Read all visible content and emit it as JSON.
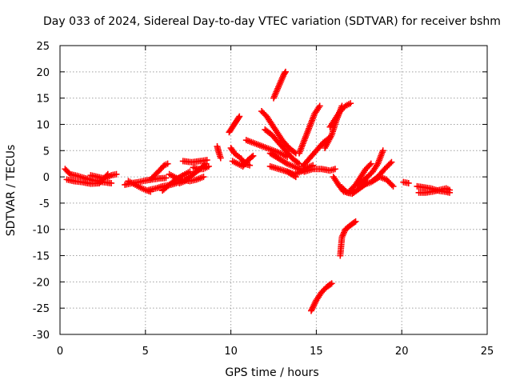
{
  "chart_data": {
    "type": "scatter",
    "title": "Day 033 of 2024, Sidereal Day-to-day VTEC variation (SDTVAR) for receiver bshm",
    "xlabel": "GPS time / hours",
    "ylabel": "SDTVAR / TECUs",
    "xlim": [
      0,
      25
    ],
    "ylim": [
      -30,
      25
    ],
    "x_ticks": [
      0,
      5,
      10,
      15,
      20,
      25
    ],
    "y_ticks": [
      -30,
      -25,
      -20,
      -15,
      -10,
      -5,
      0,
      5,
      10,
      15,
      20,
      25
    ],
    "grid": true,
    "marker": "plus",
    "color": "#ff0000",
    "segments": [
      {
        "name": "s1",
        "x": [
          0.3,
          0.6,
          1.0,
          1.5,
          2.0,
          2.5,
          3.0
        ],
        "y": [
          1.5,
          0.5,
          0.2,
          -0.3,
          -0.7,
          -1.0,
          -1.2
        ]
      },
      {
        "name": "s2",
        "x": [
          0.4,
          0.8,
          1.3,
          1.8,
          2.3,
          2.8
        ],
        "y": [
          -0.5,
          -0.8,
          -1.0,
          -1.3,
          -1.2,
          0.5
        ]
      },
      {
        "name": "s3",
        "x": [
          1.8,
          2.2,
          2.6,
          3.0,
          3.3
        ],
        "y": [
          0.3,
          0.0,
          -0.3,
          0.3,
          0.5
        ]
      },
      {
        "name": "s4",
        "x": [
          3.8,
          4.2,
          4.6,
          5.0,
          5.4,
          5.8,
          6.2
        ],
        "y": [
          -1.5,
          -1.2,
          -1.0,
          -0.7,
          -0.5,
          -0.3,
          -0.2
        ]
      },
      {
        "name": "s5",
        "x": [
          4.0,
          4.4,
          4.8,
          5.1,
          5.3
        ],
        "y": [
          -0.8,
          -1.5,
          -2.2,
          -2.6,
          -2.8
        ]
      },
      {
        "name": "s6",
        "x": [
          5.3,
          5.6,
          5.9,
          6.1,
          6.3
        ],
        "y": [
          -0.5,
          0.5,
          1.5,
          2.2,
          2.5
        ]
      },
      {
        "name": "s7",
        "x": [
          5.2,
          5.6,
          6.0,
          6.5,
          7.0,
          7.4
        ],
        "y": [
          -2.5,
          -2.2,
          -1.8,
          -1.5,
          -1.0,
          -0.5
        ]
      },
      {
        "name": "s8",
        "x": [
          6.0,
          6.4,
          6.8,
          7.2,
          7.6
        ],
        "y": [
          -2.6,
          -1.5,
          -0.5,
          0.3,
          1.0
        ]
      },
      {
        "name": "s9",
        "x": [
          6.4,
          6.8,
          7.2,
          7.6,
          8.0,
          8.4
        ],
        "y": [
          0.5,
          -0.2,
          -0.6,
          -0.8,
          -0.5,
          0.0
        ]
      },
      {
        "name": "s10",
        "x": [
          7.0,
          7.3,
          7.6,
          7.9,
          8.2,
          8.5
        ],
        "y": [
          -1.2,
          -0.8,
          0.0,
          0.8,
          1.5,
          2.5
        ]
      },
      {
        "name": "s11",
        "x": [
          7.2,
          7.7,
          8.2,
          8.6
        ],
        "y": [
          3.0,
          2.8,
          3.0,
          3.2
        ]
      },
      {
        "name": "s12",
        "x": [
          7.8,
          8.1,
          8.4,
          8.7
        ],
        "y": [
          1.8,
          1.5,
          1.5,
          2.0
        ]
      },
      {
        "name": "s13",
        "x": [
          9.2,
          9.3,
          9.4
        ],
        "y": [
          5.8,
          4.6,
          3.6
        ]
      },
      {
        "name": "s14",
        "x": [
          9.9,
          10.1,
          10.3,
          10.5
        ],
        "y": [
          8.5,
          9.5,
          10.5,
          11.5
        ]
      },
      {
        "name": "s15",
        "x": [
          10.0,
          10.2,
          10.4,
          10.6,
          10.8,
          11.1
        ],
        "y": [
          5.5,
          4.5,
          4.0,
          3.5,
          2.5,
          2.2
        ]
      },
      {
        "name": "s16",
        "x": [
          10.1,
          10.4,
          10.7,
          11.0,
          11.3
        ],
        "y": [
          3.0,
          2.5,
          2.0,
          3.2,
          4.0
        ]
      },
      {
        "name": "s17",
        "x": [
          10.9,
          11.3,
          11.7,
          12.1,
          12.5,
          12.9,
          13.3
        ],
        "y": [
          7.0,
          6.5,
          6.0,
          5.5,
          5.0,
          4.5,
          3.8
        ]
      },
      {
        "name": "s18",
        "x": [
          11.8,
          12.1,
          12.4,
          12.7,
          13.0,
          13.4,
          13.8
        ],
        "y": [
          12.5,
          11.5,
          10.0,
          8.5,
          7.0,
          5.5,
          4.5
        ]
      },
      {
        "name": "s19",
        "x": [
          12.0,
          12.4,
          12.8,
          13.2,
          13.6,
          14.0
        ],
        "y": [
          9.0,
          8.0,
          6.5,
          5.0,
          3.5,
          2.5
        ]
      },
      {
        "name": "s20",
        "x": [
          12.3,
          12.8,
          13.3,
          13.8,
          14.3
        ],
        "y": [
          4.5,
          3.5,
          2.5,
          1.8,
          1.0
        ]
      },
      {
        "name": "s21",
        "x": [
          12.3,
          12.8,
          13.3,
          13.8
        ],
        "y": [
          2.0,
          1.5,
          1.0,
          0.0
        ]
      },
      {
        "name": "s22",
        "x": [
          12.5,
          12.7,
          12.9,
          13.1,
          13.2
        ],
        "y": [
          15.0,
          16.5,
          18.0,
          19.5,
          20.0
        ]
      },
      {
        "name": "s23",
        "x": [
          13.3,
          13.7,
          14.1,
          14.5,
          14.8
        ],
        "y": [
          1.0,
          0.5,
          1.0,
          1.8,
          2.2
        ]
      },
      {
        "name": "s24",
        "x": [
          14.0,
          14.3,
          14.6,
          14.9,
          15.2
        ],
        "y": [
          4.5,
          7.0,
          9.5,
          12.0,
          13.5
        ]
      },
      {
        "name": "s25",
        "x": [
          14.2,
          14.6,
          15.0,
          15.4,
          15.8
        ],
        "y": [
          2.0,
          3.5,
          5.0,
          6.5,
          7.5
        ]
      },
      {
        "name": "s26",
        "x": [
          14.3,
          14.8,
          15.3,
          15.8,
          16.1
        ],
        "y": [
          1.0,
          1.5,
          1.5,
          1.2,
          1.5
        ]
      },
      {
        "name": "s27",
        "x": [
          14.7,
          15.0,
          15.3,
          15.6,
          15.9
        ],
        "y": [
          -25.5,
          -23.5,
          -22.0,
          -21.0,
          -20.3
        ]
      },
      {
        "name": "s28",
        "x": [
          15.5,
          15.9,
          16.2,
          16.5
        ],
        "y": [
          5.5,
          8.0,
          11.0,
          13.5
        ]
      },
      {
        "name": "s29",
        "x": [
          15.8,
          16.1,
          16.4,
          16.7,
          17.0
        ],
        "y": [
          9.5,
          11.0,
          12.5,
          13.5,
          14.0
        ]
      },
      {
        "name": "s30",
        "x": [
          16.0,
          16.3,
          16.6,
          16.9,
          17.2
        ],
        "y": [
          0.0,
          -1.5,
          -2.8,
          -3.0,
          -2.5
        ]
      },
      {
        "name": "s31",
        "x": [
          16.5,
          16.8,
          17.1,
          17.4,
          17.7,
          18.0
        ],
        "y": [
          -2.0,
          -3.0,
          -3.2,
          -2.5,
          -1.8,
          -1.0
        ]
      },
      {
        "name": "s32",
        "x": [
          16.4,
          16.5,
          16.7,
          17.0,
          17.3
        ],
        "y": [
          -15.0,
          -11.5,
          -10.0,
          -9.2,
          -8.5
        ]
      },
      {
        "name": "s33",
        "x": [
          17.0,
          17.3,
          17.6,
          17.9,
          18.2
        ],
        "y": [
          -2.5,
          -1.5,
          0.0,
          1.5,
          2.5
        ]
      },
      {
        "name": "s34",
        "x": [
          17.4,
          17.7,
          18.0,
          18.3,
          18.6,
          18.9
        ],
        "y": [
          -1.5,
          -0.8,
          0.0,
          1.0,
          2.5,
          5.0
        ]
      },
      {
        "name": "s35",
        "x": [
          17.8,
          18.2,
          18.6,
          19.0,
          19.4
        ],
        "y": [
          -1.5,
          -1.0,
          0.0,
          1.5,
          2.8
        ]
      },
      {
        "name": "s36",
        "x": [
          18.3,
          18.7,
          19.1,
          19.5
        ],
        "y": [
          -0.8,
          0.0,
          -0.5,
          -1.8
        ]
      },
      {
        "name": "s37",
        "x": [
          20.1,
          20.4
        ],
        "y": [
          -1.0,
          -1.2
        ]
      },
      {
        "name": "s38",
        "x": [
          20.9,
          21.3,
          21.7,
          22.1,
          22.5,
          22.8
        ],
        "y": [
          -1.8,
          -2.0,
          -2.2,
          -2.6,
          -2.8,
          -3.0
        ]
      },
      {
        "name": "s39",
        "x": [
          21.0,
          21.4,
          21.8,
          22.2,
          22.6,
          22.8
        ],
        "y": [
          -3.0,
          -3.0,
          -2.8,
          -2.5,
          -2.2,
          -2.5
        ]
      }
    ]
  }
}
